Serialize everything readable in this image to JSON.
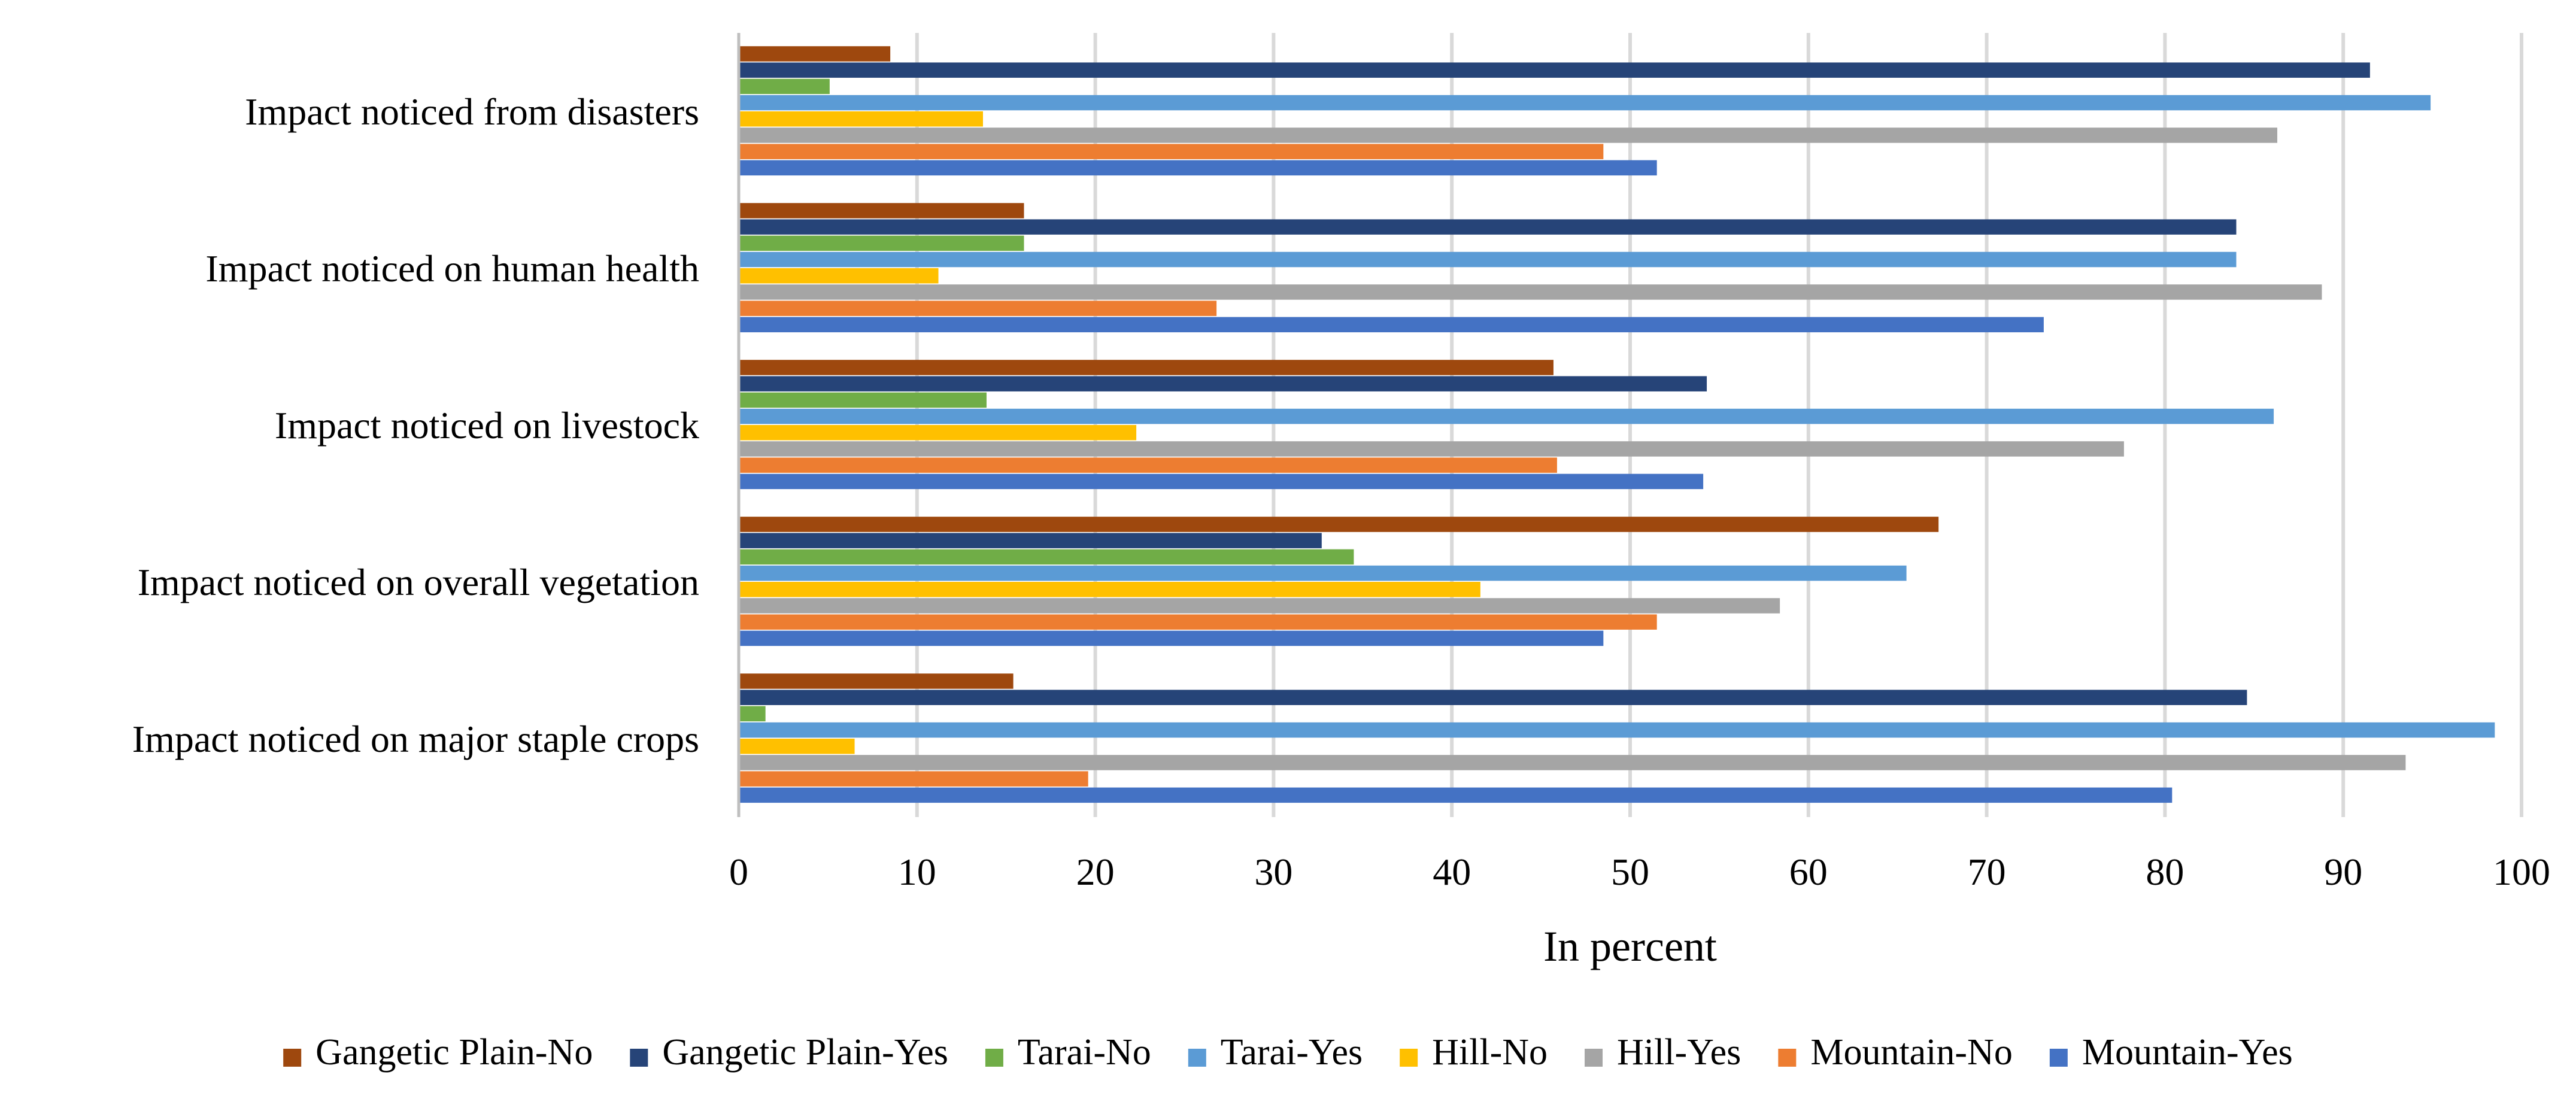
{
  "chart_data": {
    "type": "bar",
    "orientation": "horizontal",
    "title": "",
    "xlabel": "In percent",
    "ylabel": "",
    "xlim": [
      0,
      100
    ],
    "xticks": [
      0,
      10,
      20,
      30,
      40,
      50,
      60,
      70,
      80,
      90,
      100
    ],
    "grid": true,
    "legend_position": "bottom",
    "categories": [
      "Impact noticed from disasters",
      "Impact noticed on human health",
      "Impact noticed on livestock",
      "Impact noticed on overall vegetation",
      "Impact noticed on major staple crops"
    ],
    "series": [
      {
        "name": "Gangetic Plain-No",
        "color": "#9e480e",
        "values": [
          8.5,
          16,
          45.7,
          67.3,
          15.4
        ]
      },
      {
        "name": "Gangetic Plain-Yes",
        "color": "#264478",
        "values": [
          91.5,
          84,
          54.3,
          32.7,
          84.6
        ]
      },
      {
        "name": "Tarai-No",
        "color": "#70ad47",
        "values": [
          5.1,
          16,
          13.9,
          34.5,
          1.5
        ]
      },
      {
        "name": "Tarai-Yes",
        "color": "#5b9bd5",
        "values": [
          94.9,
          84,
          86.1,
          65.5,
          98.5
        ]
      },
      {
        "name": "Hill-No",
        "color": "#ffc000",
        "values": [
          13.7,
          11.2,
          22.3,
          41.6,
          6.5
        ]
      },
      {
        "name": "Hill-Yes",
        "color": "#a5a5a5",
        "values": [
          86.3,
          88.8,
          77.7,
          58.4,
          93.5
        ]
      },
      {
        "name": "Mountain-No",
        "color": "#ed7d31",
        "values": [
          48.5,
          26.8,
          45.9,
          51.5,
          19.6
        ]
      },
      {
        "name": "Mountain-Yes",
        "color": "#4472c4",
        "values": [
          51.5,
          73.2,
          54.1,
          48.5,
          80.4
        ]
      }
    ]
  }
}
